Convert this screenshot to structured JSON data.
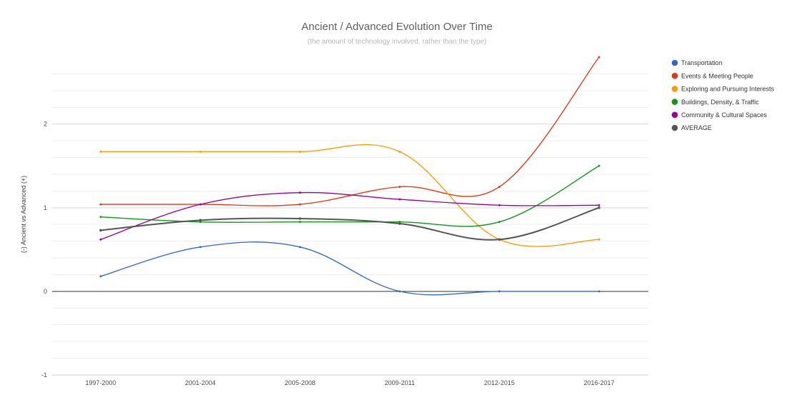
{
  "chart_data": {
    "type": "line",
    "title": "Ancient / Advanced Evolution Over Time",
    "subtitle": "(the amount of technology involved, rather than the type)",
    "xlabel": "",
    "ylabel": "(-) Ancient vs Advanced (+)",
    "categories": [
      "1997-2000",
      "2001-2004",
      "2005-2008",
      "2009-2011",
      "2012-2015",
      "2016-2017"
    ],
    "ylim": [
      -1,
      2.8
    ],
    "yticks": [
      2,
      1,
      0,
      -1
    ],
    "grid": true,
    "legend_position": "right",
    "series": [
      {
        "name": "Transportation",
        "color": "#3366cc",
        "values": [
          0.18,
          0.53,
          0.53,
          0.0,
          0.0,
          0.0
        ]
      },
      {
        "name": "Events & Meeting People",
        "color": "#dc3912",
        "values": [
          1.04,
          1.04,
          1.04,
          1.25,
          1.25,
          2.8
        ]
      },
      {
        "name": "Exploring and Pursuing Interests",
        "color": "#ff9900",
        "values": [
          1.67,
          1.67,
          1.67,
          1.67,
          0.62,
          0.62
        ]
      },
      {
        "name": "Buildings, Density, & Traffic",
        "color": "#109618",
        "values": [
          0.89,
          0.83,
          0.83,
          0.83,
          0.83,
          1.5
        ]
      },
      {
        "name": "Community & Cultural Spaces",
        "color": "#990099",
        "values": [
          0.62,
          1.04,
          1.18,
          1.1,
          1.03,
          1.03
        ]
      },
      {
        "name": "AVERAGE",
        "color": "#555555",
        "values": [
          0.73,
          0.85,
          0.87,
          0.81,
          0.62,
          1.0
        ]
      }
    ]
  }
}
